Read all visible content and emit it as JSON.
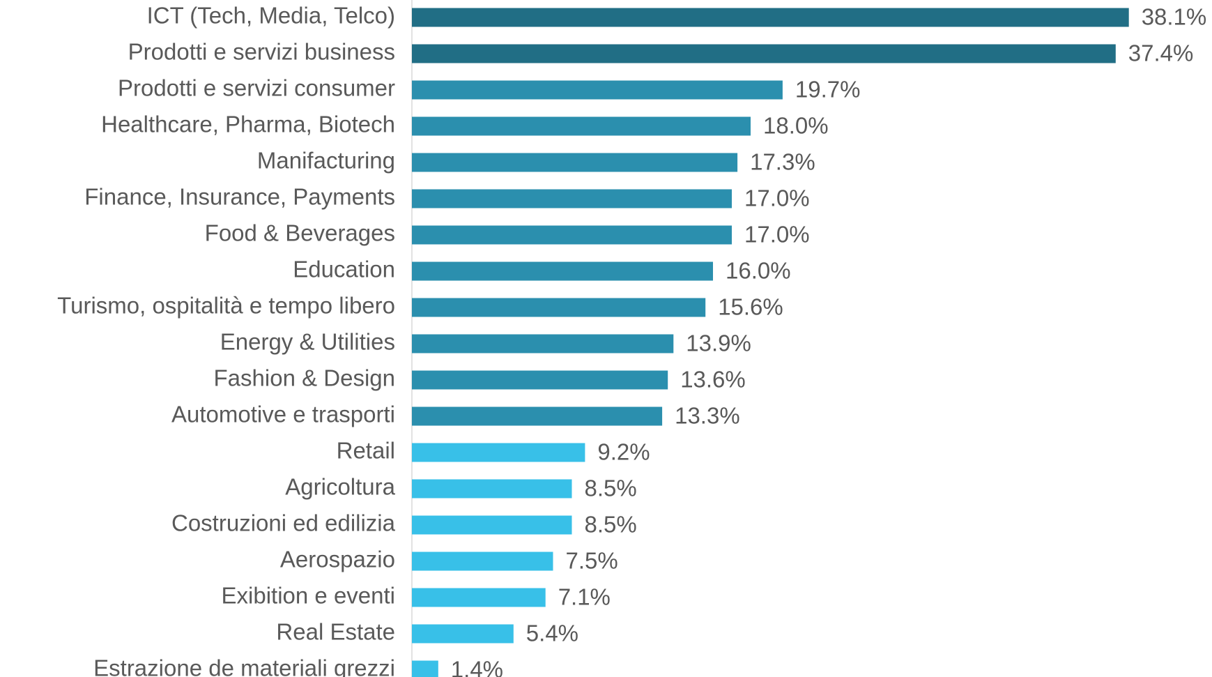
{
  "chart_data": {
    "type": "bar",
    "orientation": "horizontal",
    "categories": [
      "ICT (Tech, Media, Telco)",
      "Prodotti e servizi business",
      "Prodotti e servizi consumer",
      "Healthcare, Pharma, Biotech",
      "Manifacturing",
      "Finance, Insurance, Payments",
      "Food & Beverages",
      "Education",
      "Turismo, ospitalità e tempo libero",
      "Energy & Utilities",
      "Fashion & Design",
      "Automotive e trasporti",
      "Retail",
      "Agricoltura",
      "Costruzioni ed edilizia",
      "Aerospazio",
      "Exibition e eventi",
      "Real Estate",
      "Estrazione de materiali grezzi"
    ],
    "values": [
      38.1,
      37.4,
      19.7,
      18.0,
      17.3,
      17.0,
      17.0,
      16.0,
      15.6,
      13.9,
      13.6,
      13.3,
      9.2,
      8.5,
      8.5,
      7.5,
      7.1,
      5.4,
      1.4
    ],
    "value_labels": [
      "38.1%",
      "37.4%",
      "19.7%",
      "18.0%",
      "17.3%",
      "17.0%",
      "17.0%",
      "16.0%",
      "15.6%",
      "13.9%",
      "13.6%",
      "13.3%",
      "9.2%",
      "8.5%",
      "8.5%",
      "7.5%",
      "7.1%",
      "5.4%",
      "1.4%"
    ],
    "colors": [
      "#216e85",
      "#216e85",
      "#2b8fae",
      "#2b8fae",
      "#2b8fae",
      "#2b8fae",
      "#2b8fae",
      "#2b8fae",
      "#2b8fae",
      "#2b8fae",
      "#2b8fae",
      "#2b8fae",
      "#38c0e8",
      "#38c0e8",
      "#38c0e8",
      "#38c0e8",
      "#38c0e8",
      "#38c0e8",
      "#38c0e8"
    ]
  }
}
